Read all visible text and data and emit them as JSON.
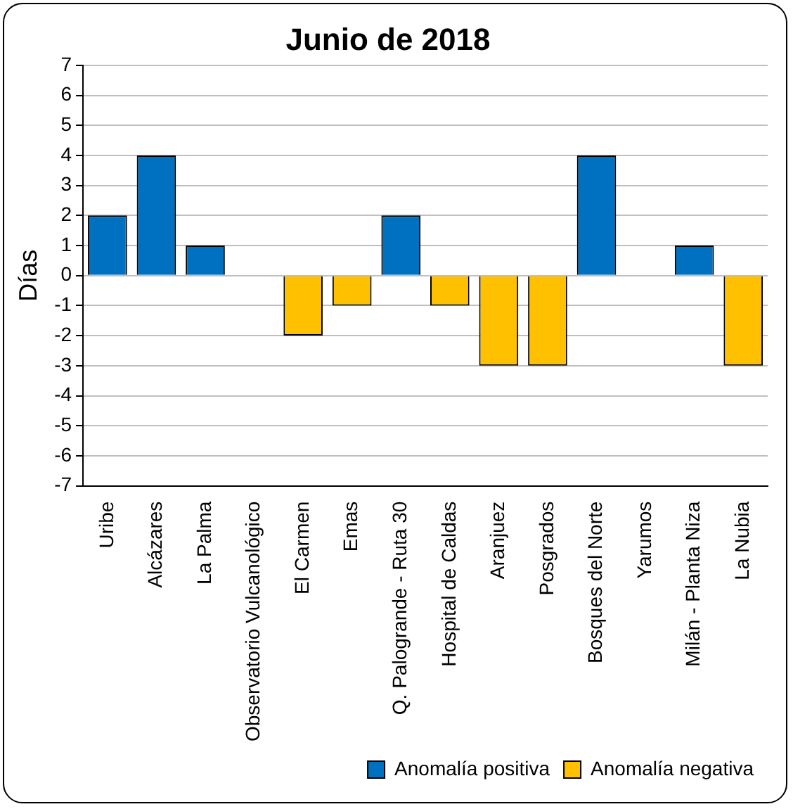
{
  "chart_data": {
    "type": "bar",
    "title": "Junio de 2018",
    "ylabel": "Días",
    "categories": [
      "Uribe",
      "Alcázares",
      "La Palma",
      "Observatorio Vulcanológico",
      "El Carmen",
      "Emas",
      "Q. Palogrande - Ruta 30",
      "Hospital de Caldas",
      "Aranjuez",
      "Posgrados",
      "Bosques del Norte",
      "Yarumos",
      "Milán - Planta Niza",
      "La Nubia"
    ],
    "series": [
      {
        "name": "Anomalía positiva",
        "color": "#0070c0",
        "values": [
          2,
          4,
          1,
          null,
          null,
          null,
          2,
          null,
          null,
          null,
          4,
          null,
          1,
          null
        ]
      },
      {
        "name": "Anomalía negativa",
        "color": "#ffc000",
        "values": [
          null,
          null,
          null,
          null,
          -2,
          -1,
          null,
          -1,
          -3,
          -3,
          null,
          null,
          null,
          -3
        ]
      }
    ],
    "ylim": [
      -7,
      7
    ],
    "yticks": [
      -7,
      -6,
      -5,
      -4,
      -3,
      -2,
      -1,
      0,
      1,
      2,
      3,
      4,
      5,
      6,
      7
    ],
    "grid": "y",
    "legend": "bottom right"
  }
}
